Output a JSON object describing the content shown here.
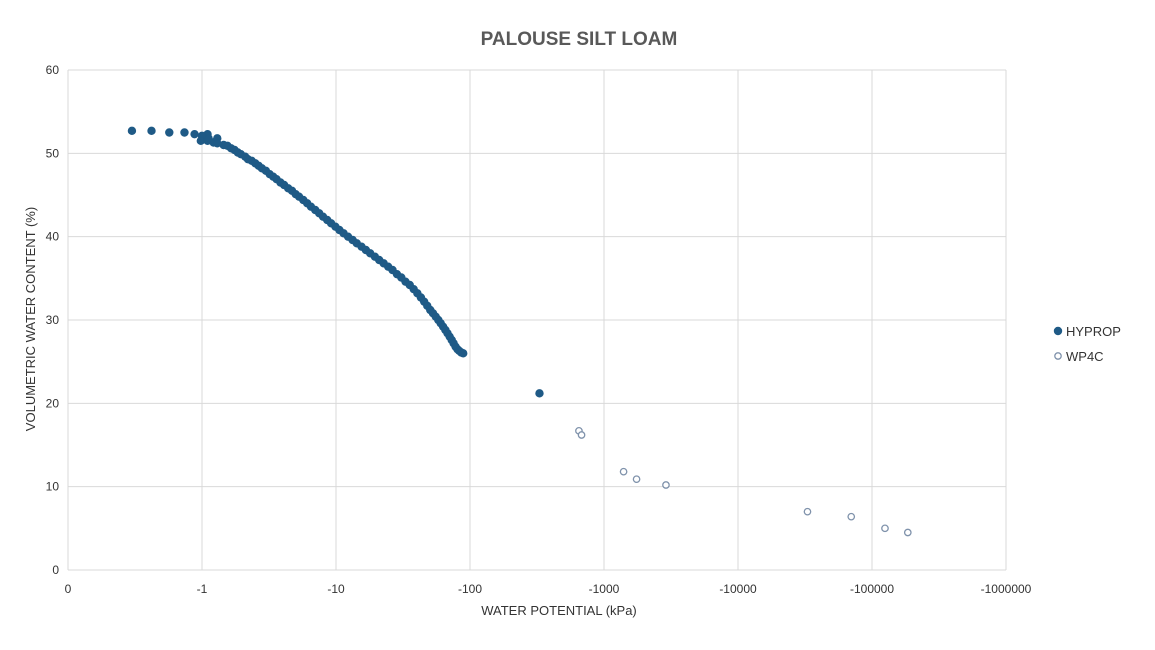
{
  "chart_data": {
    "type": "scatter",
    "title": "PALOUSE SILT LOAM",
    "xlabel": "WATER POTENTIAL (kPa)",
    "ylabel": "VOLUMETRIC WATER CONTENT (%)",
    "x_scale": "log",
    "x_ticks": [
      {
        "value": 0.1,
        "label": "0"
      },
      {
        "value": 1,
        "label": "-1"
      },
      {
        "value": 10,
        "label": "-10"
      },
      {
        "value": 100,
        "label": "-100"
      },
      {
        "value": 1000,
        "label": "-1000"
      },
      {
        "value": 10000,
        "label": "-10000"
      },
      {
        "value": 100000,
        "label": "-100000"
      },
      {
        "value": 1000000,
        "label": "-1000000"
      }
    ],
    "xlim": [
      0.1,
      1000000
    ],
    "ylim": [
      0,
      60
    ],
    "y_ticks": [
      0,
      10,
      20,
      30,
      40,
      50,
      60
    ],
    "grid": true,
    "legend_position": "right",
    "series": [
      {
        "name": "HYPROP",
        "marker": "filled",
        "color": "#1f5a86",
        "points": [
          [
            0.3,
            52.7
          ],
          [
            0.42,
            52.7
          ],
          [
            0.57,
            52.5
          ],
          [
            0.74,
            52.5
          ],
          [
            0.88,
            52.3
          ],
          [
            1.1,
            52.3
          ],
          [
            1.0,
            52.1
          ],
          [
            0.98,
            51.5
          ],
          [
            1.1,
            51.5
          ],
          [
            1.12,
            51.8
          ],
          [
            1.22,
            51.3
          ],
          [
            1.3,
            51.8
          ],
          [
            1.3,
            51.2
          ],
          [
            1.45,
            51.0
          ],
          [
            1.55,
            50.9
          ],
          [
            1.65,
            50.6
          ],
          [
            1.75,
            50.4
          ],
          [
            1.85,
            50.1
          ],
          [
            1.95,
            49.9
          ],
          [
            2.1,
            49.6
          ],
          [
            2.2,
            49.3
          ],
          [
            2.35,
            49.1
          ],
          [
            2.5,
            48.8
          ],
          [
            2.65,
            48.5
          ],
          [
            2.8,
            48.2
          ],
          [
            3.0,
            47.9
          ],
          [
            3.2,
            47.5
          ],
          [
            3.4,
            47.2
          ],
          [
            3.6,
            46.9
          ],
          [
            3.85,
            46.5
          ],
          [
            4.1,
            46.2
          ],
          [
            4.4,
            45.8
          ],
          [
            4.7,
            45.5
          ],
          [
            5.0,
            45.1
          ],
          [
            5.3,
            44.8
          ],
          [
            5.7,
            44.4
          ],
          [
            6.1,
            44.0
          ],
          [
            6.5,
            43.6
          ],
          [
            7.0,
            43.2
          ],
          [
            7.5,
            42.8
          ],
          [
            8.0,
            42.4
          ],
          [
            8.6,
            42.0
          ],
          [
            9.2,
            41.6
          ],
          [
            9.9,
            41.2
          ],
          [
            10.6,
            40.8
          ],
          [
            11.4,
            40.4
          ],
          [
            12.3,
            40.0
          ],
          [
            13.3,
            39.6
          ],
          [
            14.3,
            39.2
          ],
          [
            15.5,
            38.8
          ],
          [
            16.7,
            38.4
          ],
          [
            18.0,
            38.0
          ],
          [
            19.5,
            37.6
          ],
          [
            21.0,
            37.2
          ],
          [
            22.7,
            36.8
          ],
          [
            24.5,
            36.4
          ],
          [
            26.4,
            36.0
          ],
          [
            28.5,
            35.5
          ],
          [
            30.7,
            35.1
          ],
          [
            33.0,
            34.6
          ],
          [
            35.5,
            34.2
          ],
          [
            38.0,
            33.7
          ],
          [
            40.5,
            33.2
          ],
          [
            43.0,
            32.7
          ],
          [
            45.5,
            32.2
          ],
          [
            48.0,
            31.7
          ],
          [
            50.5,
            31.2
          ],
          [
            53.0,
            30.8
          ],
          [
            55.5,
            30.4
          ],
          [
            58.0,
            30.0
          ],
          [
            60.5,
            29.6
          ],
          [
            63.0,
            29.2
          ],
          [
            65.5,
            28.8
          ],
          [
            68.0,
            28.4
          ],
          [
            70.5,
            28.0
          ],
          [
            73.0,
            27.6
          ],
          [
            75.5,
            27.2
          ],
          [
            78.0,
            26.8
          ],
          [
            80.5,
            26.5
          ],
          [
            83.0,
            26.3
          ],
          [
            86.0,
            26.1
          ],
          [
            89.0,
            26.0
          ],
          [
            330,
            21.2
          ]
        ]
      },
      {
        "name": "WP4C",
        "marker": "hollow",
        "color": "#7f92ab",
        "points": [
          [
            650,
            16.7
          ],
          [
            680,
            16.2
          ],
          [
            1400,
            11.8
          ],
          [
            1750,
            10.9
          ],
          [
            2900,
            10.2
          ],
          [
            33000,
            7.0
          ],
          [
            70000,
            6.4
          ],
          [
            125000,
            5.0
          ],
          [
            185000,
            4.5
          ]
        ]
      }
    ]
  }
}
